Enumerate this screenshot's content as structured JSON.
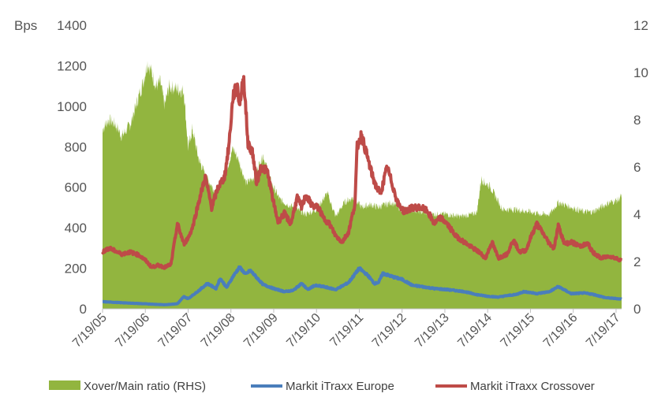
{
  "chart_data": {
    "type": "line",
    "title": "",
    "ylabel": "Bps",
    "ylim": [
      0,
      1400
    ],
    "y_ticks": [
      "0",
      "200",
      "400",
      "600",
      "800",
      "1000",
      "1200",
      "1400"
    ],
    "y2lim": [
      0,
      12
    ],
    "y2_ticks": [
      "0",
      "2",
      "4",
      "6",
      "8",
      "10",
      "12"
    ],
    "x_ticks": [
      "7/19/05",
      "7/19/06",
      "7/19/07",
      "7/19/08",
      "7/19/09",
      "7/19/10",
      "7/19/11",
      "7/19/12",
      "7/19/13",
      "7/19/14",
      "7/19/15",
      "7/19/16",
      "7/19/17"
    ],
    "legend_position": "bottom",
    "grid": false,
    "series": [
      {
        "name": "Xover/Main ratio (RHS)",
        "kind": "area",
        "axis": "right",
        "color": "#92b53f",
        "x": [
          2005.55,
          2005.7,
          2005.85,
          2006.0,
          2006.2,
          2006.35,
          2006.5,
          2006.6,
          2006.7,
          2006.8,
          2006.9,
          2007.0,
          2007.1,
          2007.3,
          2007.45,
          2007.55,
          2007.65,
          2007.8,
          2008.0,
          2008.2,
          2008.4,
          2008.6,
          2008.75,
          2008.9,
          2009.1,
          2009.3,
          2009.5,
          2009.7,
          2010.0,
          2010.3,
          2010.55,
          2010.8,
          2011.0,
          2011.2,
          2011.4,
          2011.6,
          2011.8,
          2012.0,
          2012.3,
          2012.55,
          2012.8,
          2013.0,
          2013.3,
          2013.6,
          2013.9,
          2014.2,
          2014.3,
          2014.4,
          2014.5,
          2014.6,
          2014.75,
          2014.9,
          2015.2,
          2015.55,
          2015.8,
          2016.0,
          2016.2,
          2016.5,
          2016.8,
          2017.0,
          2017.2,
          2017.4,
          2017.6,
          2017.68
        ],
        "values": [
          7.6,
          8.0,
          7.8,
          7.3,
          7.8,
          8.7,
          9.6,
          10.4,
          10.0,
          9.4,
          9.6,
          8.6,
          9.4,
          9.3,
          9.2,
          6.8,
          7.6,
          6.3,
          5.5,
          4.9,
          5.6,
          6.8,
          6.2,
          5.3,
          5.6,
          6.5,
          5.3,
          4.6,
          4.3,
          4.0,
          4.2,
          4.9,
          3.9,
          4.5,
          4.7,
          4.3,
          4.4,
          4.3,
          4.5,
          4.2,
          4.2,
          4.1,
          4.0,
          4.0,
          3.9,
          4.0,
          4.1,
          5.5,
          5.3,
          5.2,
          4.7,
          4.2,
          4.2,
          4.1,
          4.0,
          4.0,
          4.5,
          4.3,
          4.1,
          4.1,
          4.3,
          4.5,
          4.6,
          4.8
        ]
      },
      {
        "name": "Markit iTraxx Europe",
        "kind": "line",
        "axis": "left",
        "color": "#4a7ebb",
        "x": [
          2005.55,
          2006.0,
          2006.5,
          2007.0,
          2007.3,
          2007.45,
          2007.55,
          2007.8,
          2008.0,
          2008.2,
          2008.3,
          2008.45,
          2008.6,
          2008.75,
          2008.9,
          2009.0,
          2009.3,
          2009.55,
          2009.8,
          2010.0,
          2010.2,
          2010.35,
          2010.5,
          2010.7,
          2011.0,
          2011.3,
          2011.55,
          2011.75,
          2011.9,
          2012.0,
          2012.1,
          2012.3,
          2012.55,
          2012.8,
          2013.0,
          2013.3,
          2013.6,
          2014.0,
          2014.3,
          2014.55,
          2014.8,
          2015.0,
          2015.2,
          2015.4,
          2015.55,
          2015.7,
          2016.0,
          2016.2,
          2016.5,
          2016.8,
          2017.0,
          2017.3,
          2017.68
        ],
        "values": [
          35,
          30,
          25,
          20,
          25,
          60,
          50,
          90,
          125,
          100,
          150,
          105,
          160,
          205,
          170,
          190,
          120,
          100,
          85,
          90,
          125,
          95,
          115,
          110,
          95,
          130,
          200,
          165,
          125,
          130,
          175,
          160,
          145,
          115,
          110,
          100,
          95,
          85,
          70,
          62,
          58,
          65,
          70,
          85,
          80,
          75,
          85,
          110,
          75,
          78,
          72,
          55,
          48
        ]
      },
      {
        "name": "Markit iTraxx Crossover",
        "kind": "line",
        "axis": "left",
        "color": "#be4b48",
        "x": [
          2005.55,
          2005.7,
          2005.85,
          2006.0,
          2006.2,
          2006.4,
          2006.55,
          2006.7,
          2006.85,
          2007.0,
          2007.15,
          2007.3,
          2007.45,
          2007.55,
          2007.65,
          2007.8,
          2007.95,
          2008.1,
          2008.25,
          2008.4,
          2008.5,
          2008.6,
          2008.7,
          2008.75,
          2008.85,
          2008.95,
          2009.05,
          2009.15,
          2009.25,
          2009.4,
          2009.55,
          2009.65,
          2009.8,
          2009.95,
          2010.1,
          2010.2,
          2010.3,
          2010.45,
          2010.6,
          2010.7,
          2010.85,
          2011.0,
          2011.15,
          2011.3,
          2011.45,
          2011.5,
          2011.6,
          2011.75,
          2011.85,
          2011.95,
          2012.05,
          2012.2,
          2012.3,
          2012.45,
          2012.6,
          2012.8,
          2013.0,
          2013.15,
          2013.3,
          2013.45,
          2013.6,
          2013.8,
          2014.0,
          2014.2,
          2014.35,
          2014.5,
          2014.65,
          2014.8,
          2015.0,
          2015.15,
          2015.3,
          2015.45,
          2015.55,
          2015.7,
          2015.85,
          2016.0,
          2016.1,
          2016.2,
          2016.35,
          2016.5,
          2016.7,
          2016.9,
          2017.0,
          2017.2,
          2017.4,
          2017.68
        ],
        "values": [
          280,
          300,
          285,
          270,
          280,
          265,
          240,
          205,
          215,
          205,
          220,
          420,
          320,
          350,
          400,
          530,
          650,
          500,
          600,
          650,
          800,
          1050,
          1100,
          1010,
          1140,
          810,
          780,
          620,
          700,
          680,
          520,
          430,
          470,
          420,
          550,
          500,
          560,
          510,
          500,
          450,
          420,
          360,
          330,
          380,
          520,
          800,
          860,
          740,
          660,
          600,
          570,
          700,
          630,
          520,
          480,
          500,
          500,
          480,
          420,
          450,
          420,
          360,
          330,
          300,
          280,
          250,
          330,
          250,
          270,
          340,
          280,
          290,
          350,
          420,
          370,
          320,
          300,
          410,
          320,
          330,
          310,
          320,
          280,
          250,
          260,
          240
        ]
      }
    ]
  }
}
